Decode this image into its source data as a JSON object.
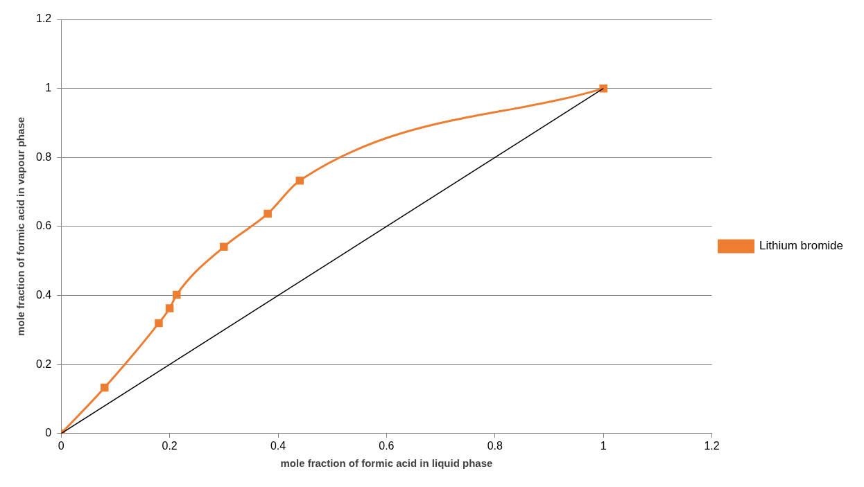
{
  "chart_data": {
    "type": "line",
    "xlabel": "mole fraction of formic acid in liquid phase",
    "ylabel": "mole fraction of formic acid in vapour phase",
    "series": [
      {
        "name": "Lithium bromide",
        "color": "#ed7d31",
        "marker": "square",
        "x": [
          0,
          0.08,
          0.18,
          0.2,
          0.213,
          0.3,
          0.381,
          0.44,
          1
        ],
        "values": [
          0,
          0.133,
          0.32,
          0.363,
          0.402,
          0.541,
          0.637,
          0.733,
          1
        ]
      },
      {
        "type": "line",
        "color": "#000000",
        "marker": "none",
        "x": [
          0,
          1
        ],
        "values": [
          0,
          1
        ]
      }
    ],
    "xlim": [
      0,
      1.2
    ],
    "xticks": [
      0,
      0.2,
      0.4,
      0.6,
      0.8,
      1,
      1.2
    ],
    "ylim": [
      0,
      1.2
    ],
    "yticks": [
      0,
      0.2,
      0.4,
      0.6,
      0.8,
      1,
      1.2
    ],
    "grid": "y",
    "legend": "right"
  }
}
